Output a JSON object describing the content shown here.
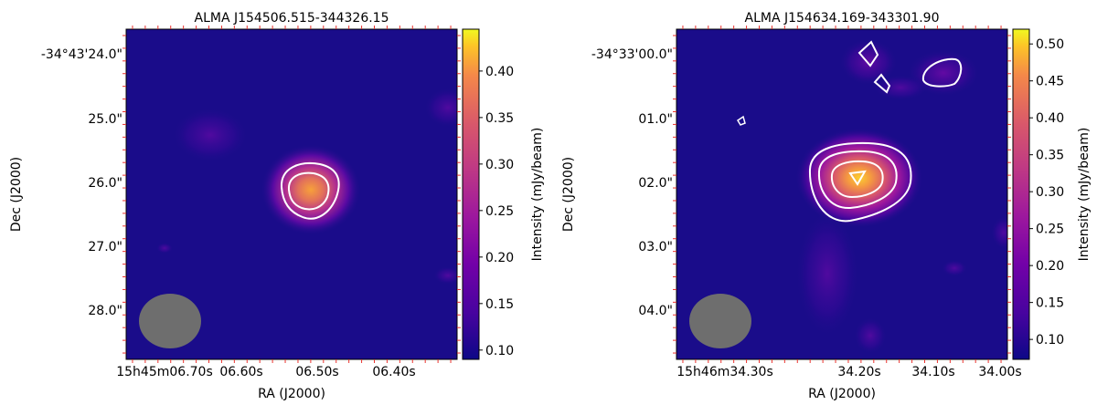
{
  "chart_data": [
    {
      "type": "heatmap",
      "title": "ALMA J154506.515-344326.15",
      "xlabel": "RA (J2000)",
      "ylabel": "Dec (J2000)",
      "x_ticks": [
        "15h45m06.70s",
        "06.60s",
        "06.50s",
        "06.40s"
      ],
      "y_ticks": [
        "-34°43'24.0\"",
        "25.0\"",
        "26.0\"",
        "27.0\"",
        "28.0\""
      ],
      "colorbar": {
        "label": "Intensity   (mJy/beam)",
        "colormap": "plasma",
        "range": [
          0.09,
          0.445
        ],
        "ticks": [
          "0.10",
          "0.15",
          "0.20",
          "0.25",
          "0.30",
          "0.35",
          "0.40"
        ],
        "tick_values": [
          0.1,
          0.15,
          0.2,
          0.25,
          0.3,
          0.35,
          0.4
        ]
      },
      "background_color": "#1a0c8a",
      "contour_color": "#ffffff",
      "beam_color": "#6e6e6e"
    },
    {
      "type": "heatmap",
      "title": "ALMA J154634.169-343301.90",
      "xlabel": "RA (J2000)",
      "ylabel": "Dec (J2000)",
      "x_ticks": [
        "15h46m34.30s",
        "34.20s",
        "34.10s",
        "34.00s"
      ],
      "y_ticks": [
        "-34°33'00.0\"",
        "01.0\"",
        "02.0\"",
        "03.0\"",
        "04.0\""
      ],
      "colorbar": {
        "label": "Intensity   (mJy/beam)",
        "colormap": "plasma",
        "range": [
          0.073,
          0.52
        ],
        "ticks": [
          "0.10",
          "0.15",
          "0.20",
          "0.25",
          "0.30",
          "0.35",
          "0.40",
          "0.45",
          "0.50"
        ],
        "tick_values": [
          0.1,
          0.15,
          0.2,
          0.25,
          0.3,
          0.35,
          0.4,
          0.45,
          0.5
        ]
      },
      "background_color": "#1a0c8a",
      "contour_color": "#ffffff",
      "beam_color": "#6e6e6e"
    }
  ]
}
